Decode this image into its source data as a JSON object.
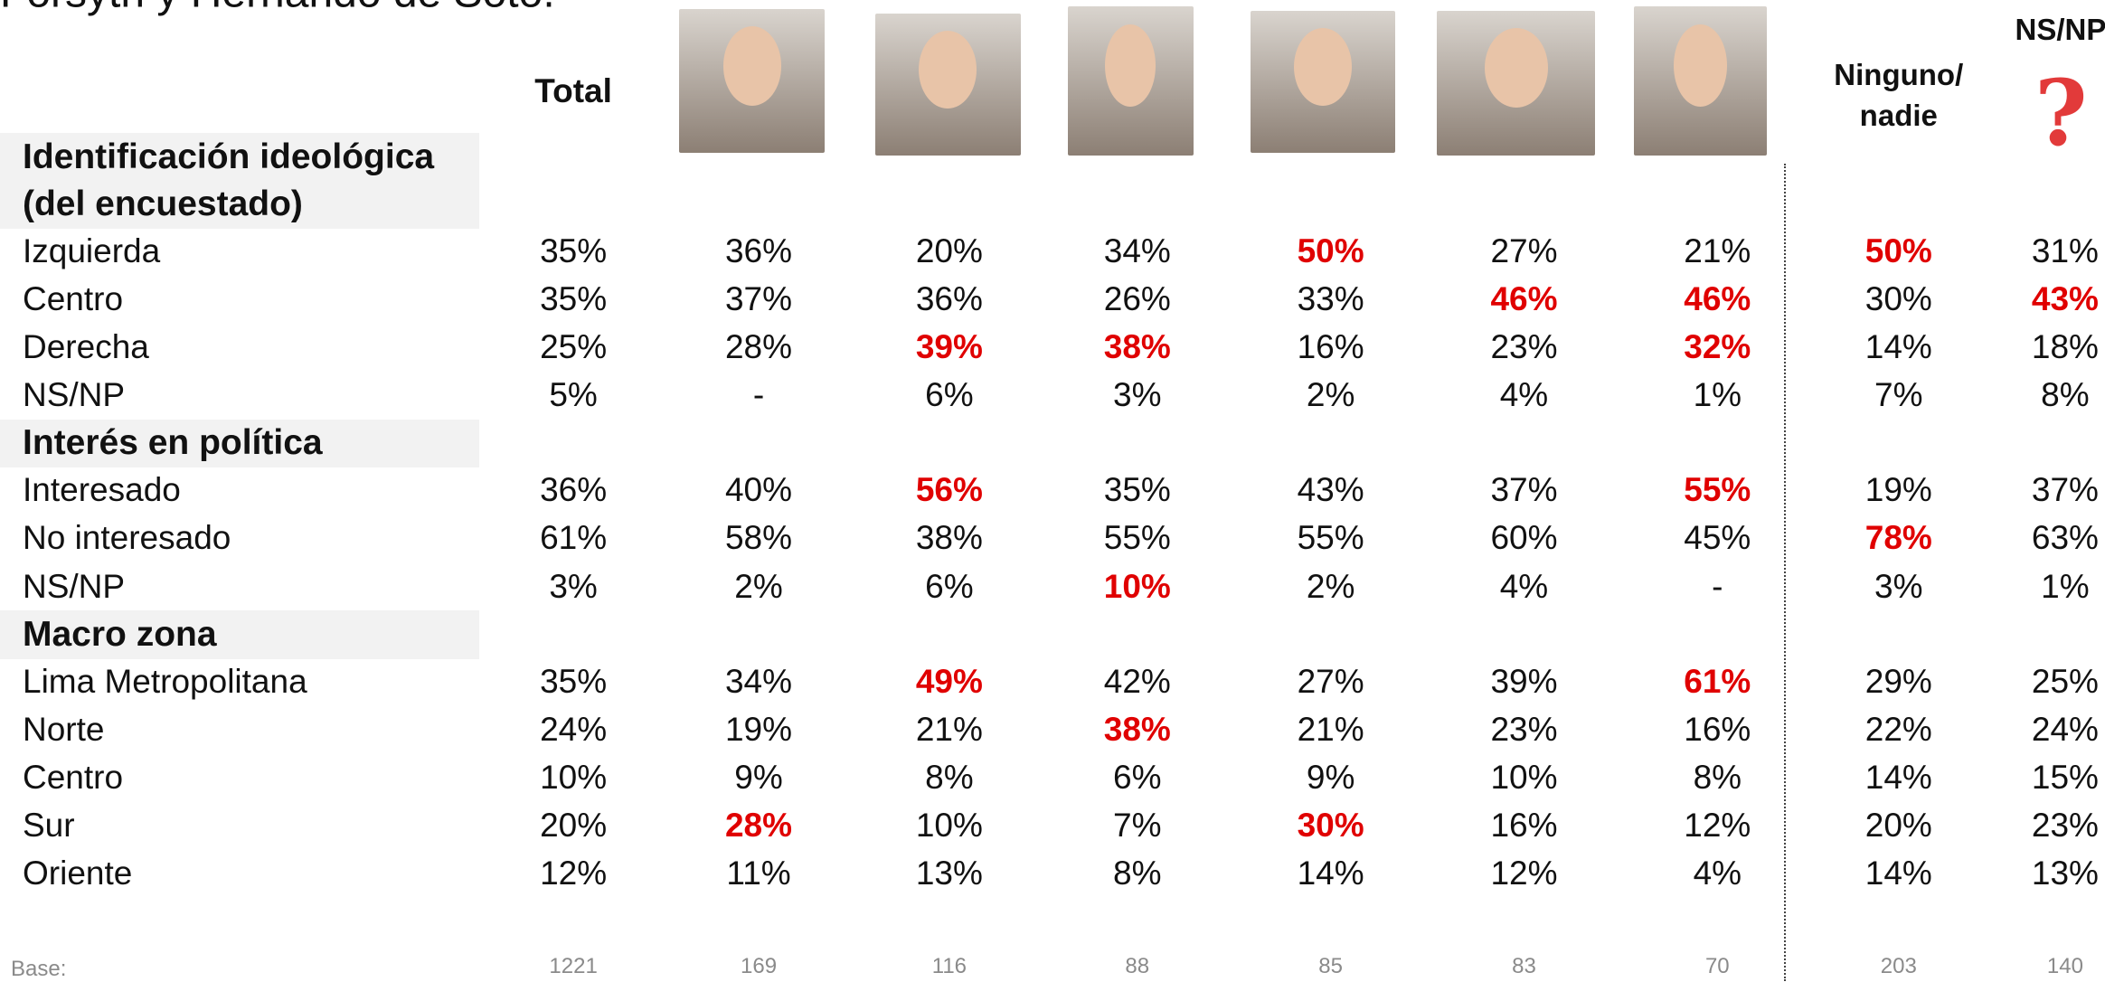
{
  "header": {
    "title": "Forsyth y Hernando de Soto.",
    "total": "Total",
    "none": [
      "Ninguno/",
      "nadie"
    ],
    "nsnp": "NS/NP"
  },
  "sections": [
    {
      "title": [
        "Identificación ideológica",
        "(del encuestado)"
      ],
      "rows": [
        {
          "label": "Izquierda",
          "values": [
            "35%",
            "36%",
            "20%",
            "34%",
            "50%",
            "27%",
            "21%",
            "50%",
            "31%"
          ],
          "red": [
            4,
            7
          ]
        },
        {
          "label": "Centro",
          "values": [
            "35%",
            "37%",
            "36%",
            "26%",
            "33%",
            "46%",
            "46%",
            "30%",
            "43%"
          ],
          "red": [
            5,
            6,
            8
          ]
        },
        {
          "label": "Derecha",
          "values": [
            "25%",
            "28%",
            "39%",
            "38%",
            "16%",
            "23%",
            "32%",
            "14%",
            "18%"
          ],
          "red": [
            2,
            3,
            6
          ]
        },
        {
          "label": "NS/NP",
          "values": [
            "5%",
            "-",
            "6%",
            "3%",
            "2%",
            "4%",
            "1%",
            "7%",
            "8%"
          ],
          "red": []
        }
      ]
    },
    {
      "title": [
        "Interés en política"
      ],
      "rows": [
        {
          "label": "Interesado",
          "values": [
            "36%",
            "40%",
            "56%",
            "35%",
            "43%",
            "37%",
            "55%",
            "19%",
            "37%"
          ],
          "red": [
            2,
            6
          ]
        },
        {
          "label": "No interesado",
          "values": [
            "61%",
            "58%",
            "38%",
            "55%",
            "55%",
            "60%",
            "45%",
            "78%",
            "63%"
          ],
          "red": [
            7
          ]
        },
        {
          "label": "NS/NP",
          "values": [
            "3%",
            "2%",
            "6%",
            "10%",
            "2%",
            "4%",
            "-",
            "3%",
            "1%"
          ],
          "red": [
            3
          ]
        }
      ]
    },
    {
      "title": [
        "Macro zona"
      ],
      "rows": [
        {
          "label": "Lima Metropolitana",
          "values": [
            "35%",
            "34%",
            "49%",
            "42%",
            "27%",
            "39%",
            "61%",
            "29%",
            "25%"
          ],
          "red": [
            2,
            6
          ]
        },
        {
          "label": "Norte",
          "values": [
            "24%",
            "19%",
            "21%",
            "38%",
            "21%",
            "23%",
            "16%",
            "22%",
            "24%"
          ],
          "red": [
            3
          ]
        },
        {
          "label": "Centro",
          "values": [
            "10%",
            "9%",
            "8%",
            "6%",
            "9%",
            "10%",
            "8%",
            "14%",
            "15%"
          ],
          "red": []
        },
        {
          "label": "Sur",
          "values": [
            "20%",
            "28%",
            "10%",
            "7%",
            "30%",
            "16%",
            "12%",
            "20%",
            "23%"
          ],
          "red": [
            1,
            4
          ]
        },
        {
          "label": "Oriente",
          "values": [
            "12%",
            "11%",
            "13%",
            "8%",
            "14%",
            "12%",
            "4%",
            "14%",
            "13%"
          ],
          "red": []
        }
      ]
    }
  ],
  "base": {
    "label": "Base:",
    "values": [
      1221,
      169,
      116,
      88,
      85,
      83,
      70,
      203,
      140
    ]
  }
}
